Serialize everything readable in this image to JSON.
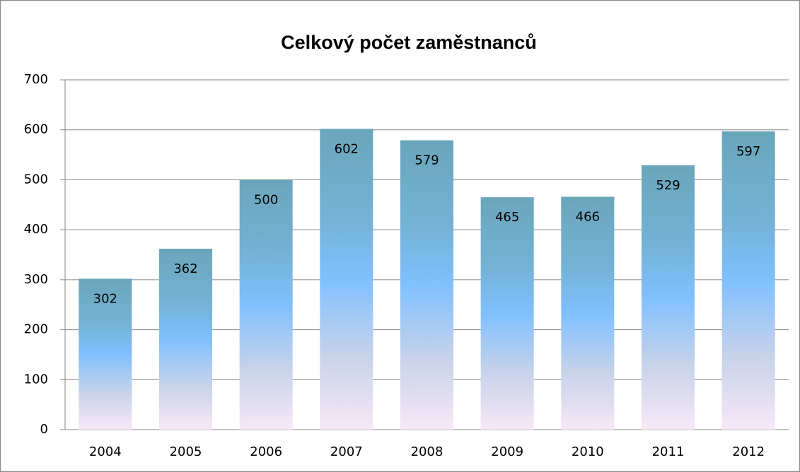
{
  "chart_data": {
    "type": "bar",
    "title": "Celkový počet zaměstnanců",
    "categories": [
      "2004",
      "2005",
      "2006",
      "2007",
      "2008",
      "2009",
      "2010",
      "2011",
      "2012"
    ],
    "values": [
      302,
      362,
      500,
      602,
      579,
      465,
      466,
      529,
      597
    ],
    "ylim": [
      0,
      700
    ],
    "yticks": [
      0,
      100,
      200,
      300,
      400,
      500,
      600,
      700
    ],
    "grid": true
  }
}
